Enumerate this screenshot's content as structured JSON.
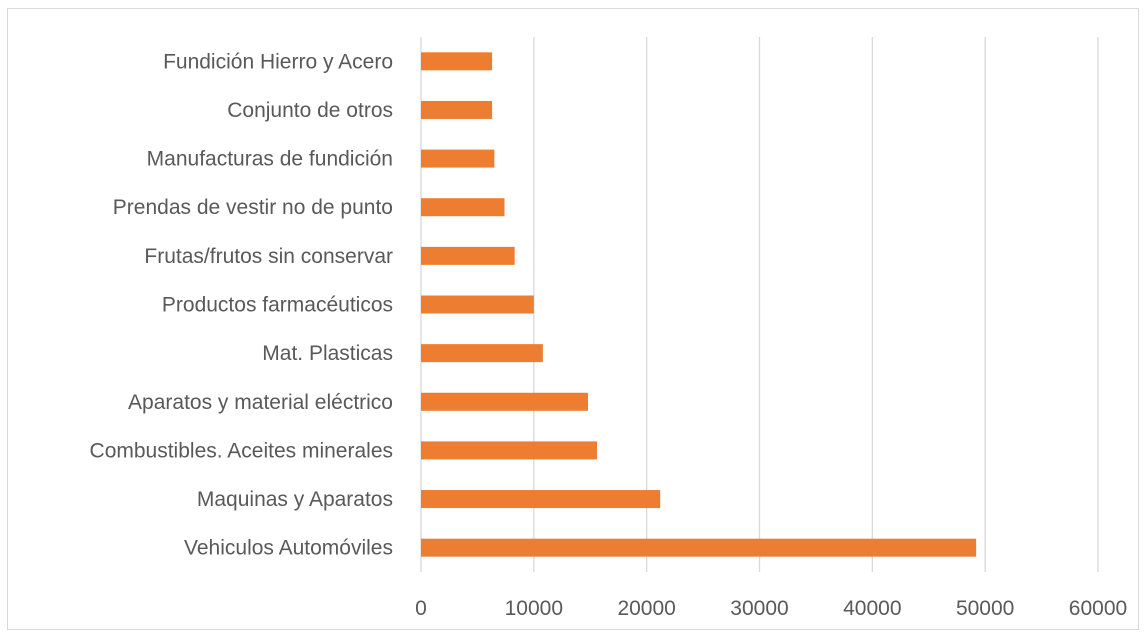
{
  "chart_data": {
    "type": "bar",
    "orientation": "horizontal",
    "title": "",
    "xlabel": "",
    "ylabel": "",
    "categories": [
      "Vehiculos Automóviles",
      "Maquinas y Aparatos",
      "Combustibles. Aceites minerales",
      "Aparatos y material eléctrico",
      "Mat. Plasticas",
      "Productos farmacéuticos",
      "Frutas/frutos sin conservar",
      "Prendas de vestir no de punto",
      "Manufacturas de fundición",
      "Conjunto de otros",
      "Fundición Hierro y Acero"
    ],
    "values": [
      49200,
      21200,
      15600,
      14800,
      10800,
      10000,
      8300,
      7400,
      6500,
      6300,
      6300
    ],
    "xlim": [
      0,
      60000
    ],
    "xticks": [
      "0",
      "10000",
      "20000",
      "30000",
      "40000",
      "50000",
      "60000"
    ],
    "grid": "vertical",
    "legend": "none",
    "colors": {
      "bar": "#ed7d31",
      "grid": "#d9d9d9",
      "text": "#595959",
      "border": "#d9d9d9"
    }
  }
}
